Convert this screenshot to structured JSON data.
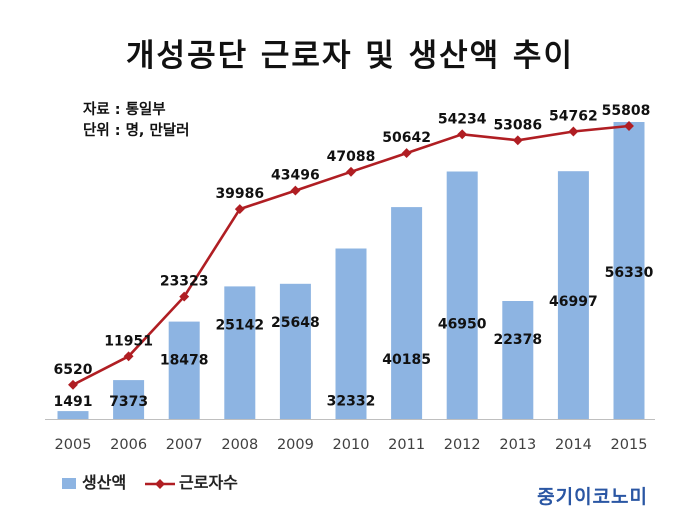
{
  "page": {
    "title": "개성공단 근로자 및 생산액 추이",
    "source_note": "자료 : 통일부",
    "unit_note": "단위 : 명, 만달러",
    "brand": "중기이코노미"
  },
  "colors": {
    "bar": "#8db4e2",
    "line": "#b01e23"
  },
  "chart_data": {
    "type": "bar+line",
    "title": "개성공단 근로자 및 생산액 추이",
    "categories": [
      "2005",
      "2006",
      "2007",
      "2008",
      "2009",
      "2010",
      "2011",
      "2012",
      "2013",
      "2014",
      "2015"
    ],
    "series": [
      {
        "name": "생산액",
        "type": "bar",
        "values": [
          1491,
          7373,
          18478,
          25142,
          25648,
          32332,
          40185,
          46950,
          22378,
          46997,
          56330
        ]
      },
      {
        "name": "근로자수",
        "type": "line",
        "values": [
          6520,
          11951,
          23323,
          39986,
          43496,
          47088,
          50642,
          54234,
          53086,
          54762,
          55808
        ]
      }
    ],
    "legend": {
      "placement": "bottom-left"
    },
    "grid": false
  }
}
